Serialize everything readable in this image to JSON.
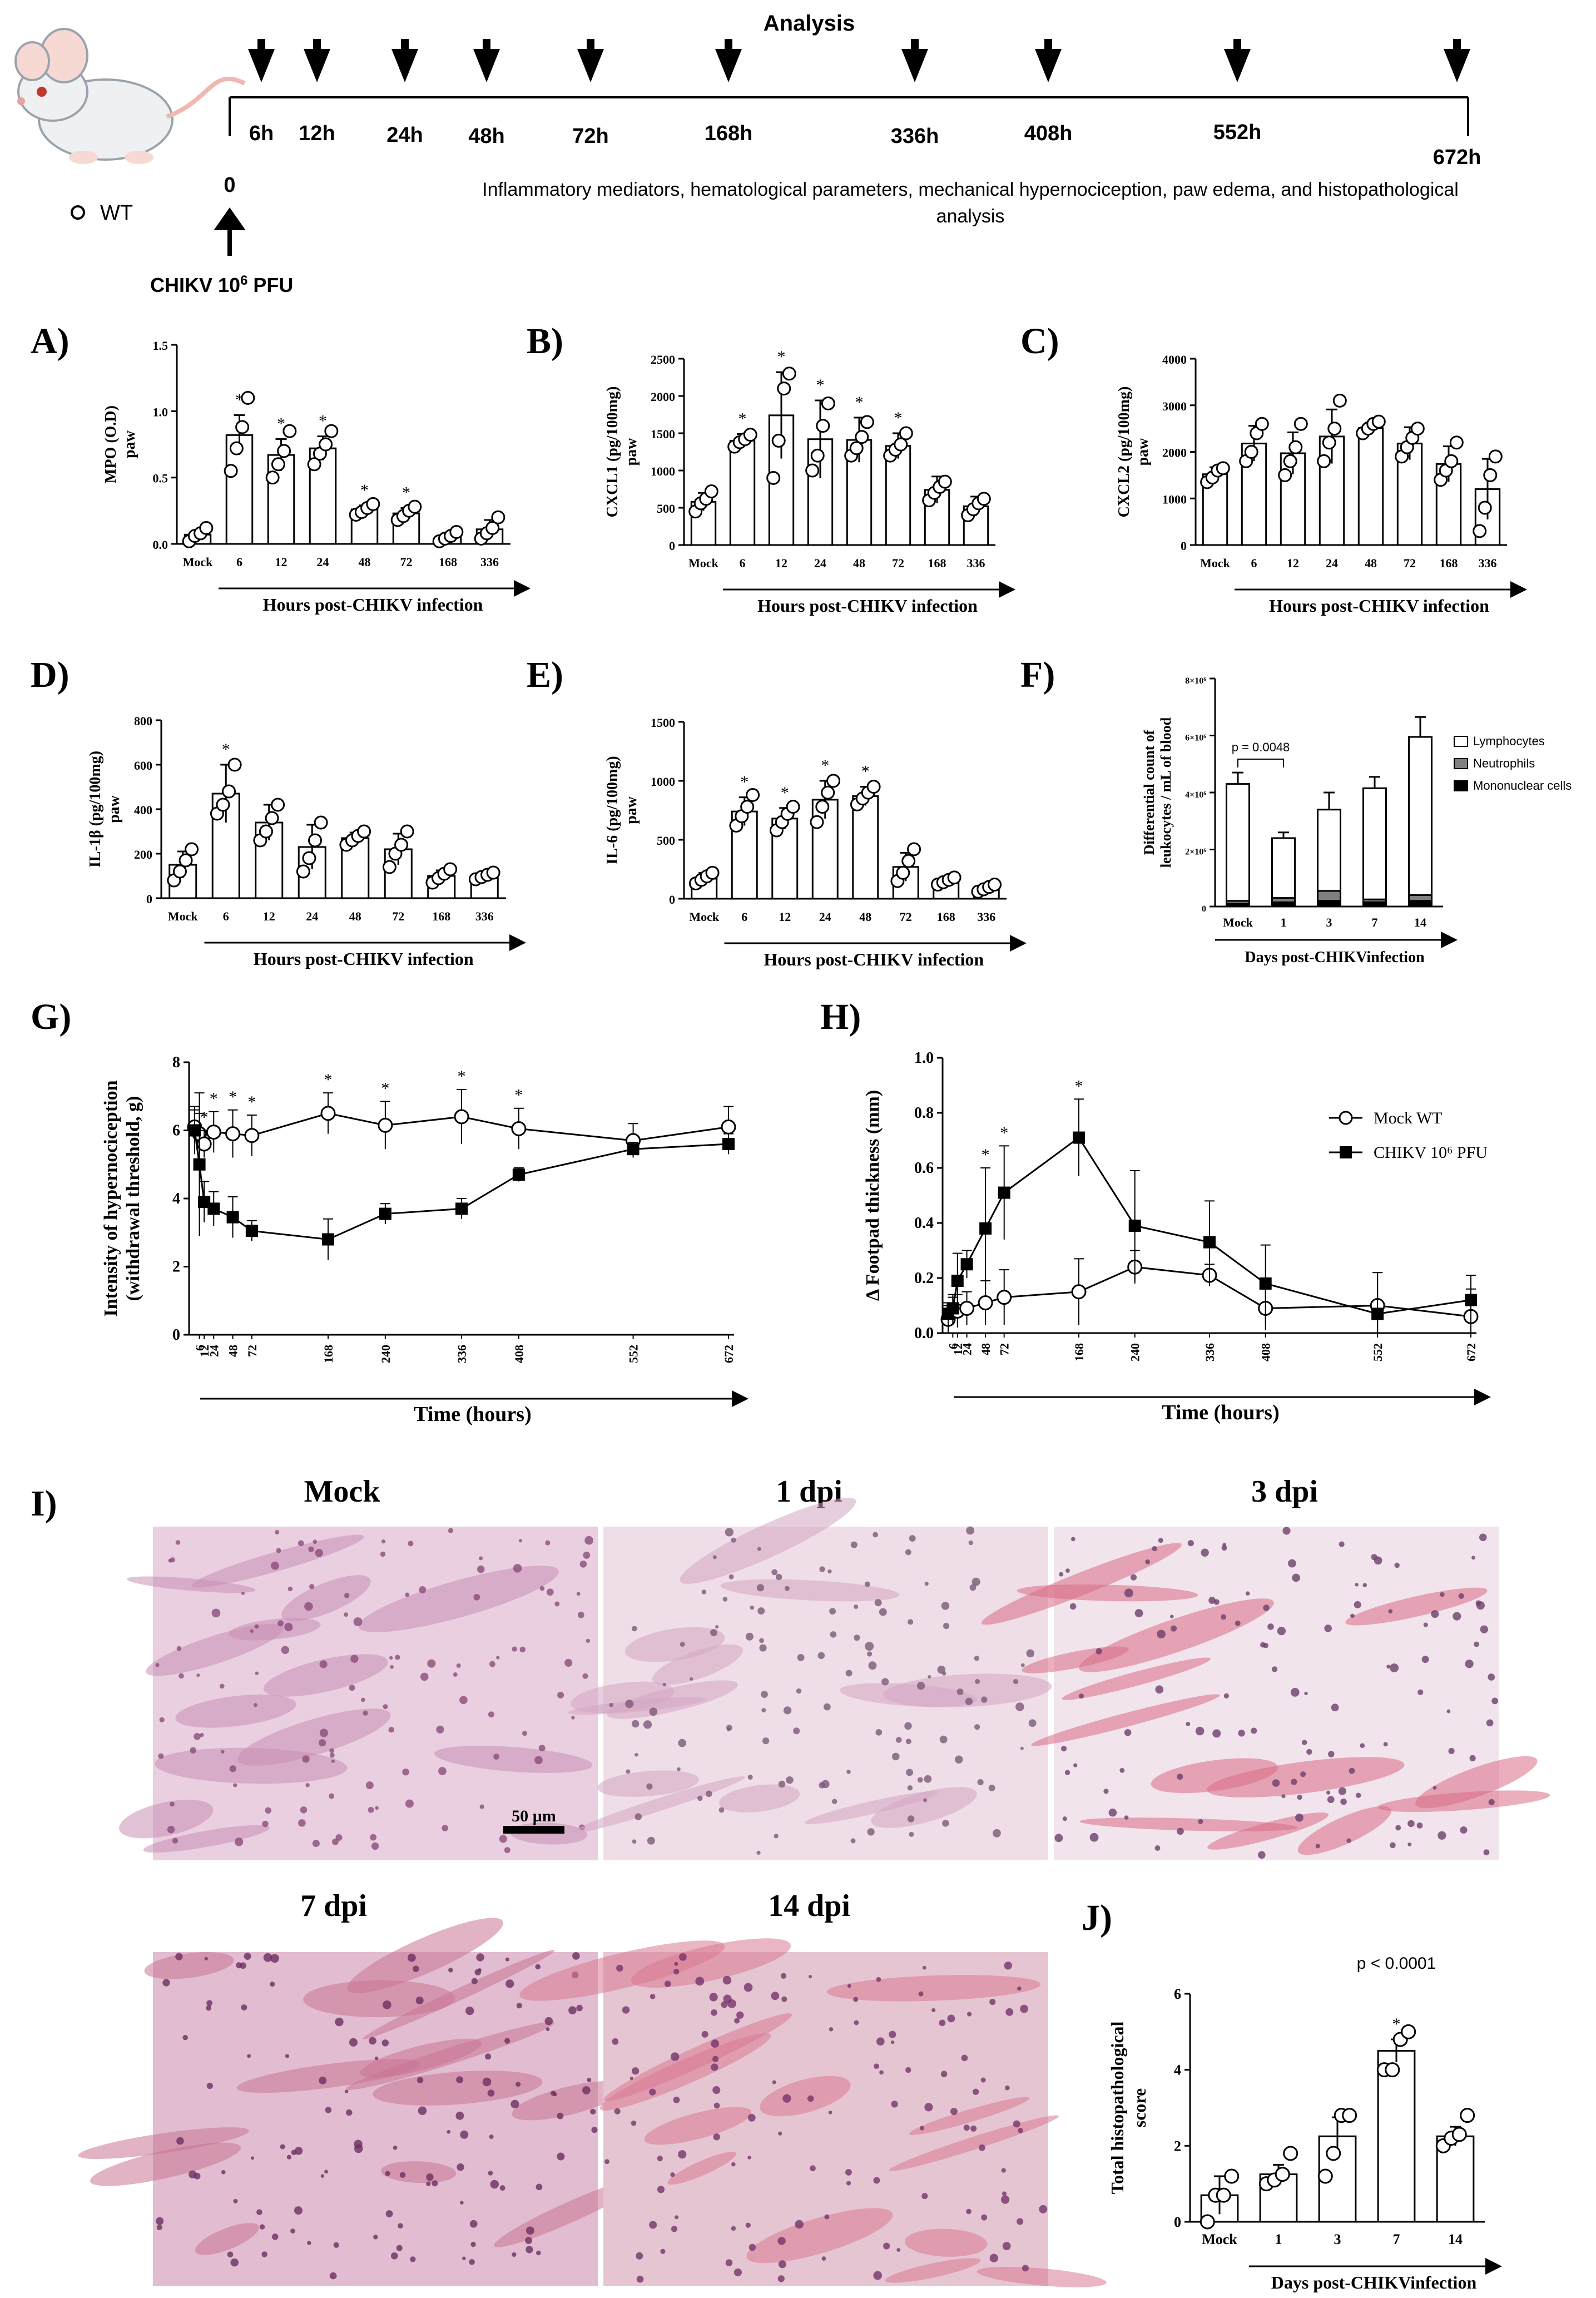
{
  "timeline": {
    "title": "Analysis",
    "hours": [
      "6h",
      "12h",
      "24h",
      "48h",
      "72h",
      "168h",
      "336h",
      "408h",
      "552h",
      "672h"
    ],
    "zero_label": "0",
    "infection_label_pre": "CHIKV 10",
    "infection_exp": "6",
    "infection_label_post": " PFU",
    "description_line1": "Inflammatory mediators, hematological parameters, mechanical hypernociception, paw edema, and histopathological",
    "description_line2": "analysis",
    "legend_wt": "WT"
  },
  "colors": {
    "bar_fill": "#ffffff",
    "stroke": "#000000",
    "neutrophil": "#808080",
    "mononuclear": "#000000"
  },
  "histology": {
    "label_i": "I)",
    "panels": [
      {
        "title": "Mock",
        "tone": "mock"
      },
      {
        "title": "1 dpi",
        "tone": "d1"
      },
      {
        "title": "3 dpi",
        "tone": "d3"
      },
      {
        "title": "7 dpi",
        "tone": "d7"
      },
      {
        "title": "14 dpi",
        "tone": "d14"
      }
    ],
    "scale_bar": "50 µm"
  },
  "chart_data": [
    {
      "id": "A",
      "panel_label": "A)",
      "type": "bar",
      "ylabel_line1": "MPO (O.D)",
      "ylabel_line2": "paw",
      "xlabel": "Hours post-CHIKV infection",
      "categories": [
        "Mock",
        "6",
        "12",
        "24",
        "48",
        "72",
        "168",
        "336"
      ],
      "values": [
        0.07,
        0.82,
        0.67,
        0.72,
        0.26,
        0.23,
        0.05,
        0.11
      ],
      "errors": [
        0.03,
        0.15,
        0.12,
        0.09,
        0.03,
        0.04,
        0.03,
        0.07
      ],
      "points": [
        [
          0.02,
          0.06,
          0.08,
          0.12
        ],
        [
          0.55,
          0.72,
          0.88,
          1.1
        ],
        [
          0.5,
          0.6,
          0.7,
          0.85
        ],
        [
          0.6,
          0.68,
          0.75,
          0.85
        ],
        [
          0.22,
          0.24,
          0.27,
          0.3
        ],
        [
          0.18,
          0.21,
          0.25,
          0.28
        ],
        [
          0.02,
          0.04,
          0.06,
          0.09
        ],
        [
          0.04,
          0.08,
          0.12,
          0.2
        ]
      ],
      "sig": [
        "",
        "*",
        "*",
        "*",
        "*",
        "*",
        "",
        ""
      ],
      "ylim": [
        0,
        1.5
      ],
      "yticks": [
        0.0,
        0.5,
        1.0,
        1.5
      ],
      "ytick_labels": [
        "0.0",
        "0.5",
        "1.0",
        "1.5"
      ]
    },
    {
      "id": "B",
      "panel_label": "B)",
      "type": "bar",
      "ylabel_line1": "CXCL1 (pg/100mg)",
      "ylabel_line2": "paw",
      "xlabel": "Hours post-CHIKV infection",
      "categories": [
        "Mock",
        "6",
        "12",
        "24",
        "48",
        "72",
        "168",
        "336"
      ],
      "values": [
        580,
        1400,
        1740,
        1420,
        1410,
        1330,
        740,
        520
      ],
      "errors": [
        120,
        90,
        580,
        520,
        300,
        170,
        180,
        130
      ],
      "points": [
        [
          450,
          560,
          620,
          720
        ],
        [
          1320,
          1380,
          1420,
          1480
        ],
        [
          900,
          1400,
          2100,
          2300
        ],
        [
          1000,
          1200,
          1600,
          1900
        ],
        [
          1200,
          1300,
          1450,
          1650
        ],
        [
          1200,
          1280,
          1350,
          1500
        ],
        [
          600,
          700,
          780,
          850
        ],
        [
          400,
          480,
          560,
          620
        ]
      ],
      "sig": [
        "",
        "*",
        "*",
        "*",
        "*",
        "*",
        "",
        ""
      ],
      "ylim": [
        0,
        2500
      ],
      "yticks": [
        0,
        500,
        1000,
        1500,
        2000,
        2500
      ],
      "ytick_labels": [
        "0",
        "500",
        "1000",
        "1500",
        "2000",
        "2500"
      ]
    },
    {
      "id": "C",
      "panel_label": "C)",
      "type": "bar",
      "ylabel_line1": "CXCL2 (pg/100mg)",
      "ylabel_line2": "paw",
      "xlabel": "Hours post-CHIKV infection",
      "categories": [
        "Mock",
        "6",
        "12",
        "24",
        "48",
        "72",
        "168",
        "336"
      ],
      "values": [
        1520,
        2180,
        1970,
        2330,
        2510,
        2180,
        1740,
        1200
      ],
      "errors": [
        150,
        380,
        450,
        580,
        120,
        350,
        380,
        650
      ],
      "points": [
        [
          1350,
          1450,
          1600,
          1650
        ],
        [
          1800,
          2000,
          2400,
          2600
        ],
        [
          1500,
          1800,
          2100,
          2600
        ],
        [
          1800,
          2200,
          2500,
          3100
        ],
        [
          2400,
          2500,
          2600,
          2650
        ],
        [
          1900,
          2100,
          2300,
          2500
        ],
        [
          1400,
          1600,
          1800,
          2200
        ],
        [
          300,
          800,
          1500,
          1900
        ]
      ],
      "sig": [
        "",
        "",
        "",
        "",
        "",
        "",
        "",
        ""
      ],
      "ylim": [
        0,
        4000
      ],
      "yticks": [
        0,
        1000,
        2000,
        3000,
        4000
      ],
      "ytick_labels": [
        "0",
        "1000",
        "2000",
        "3000",
        "4000"
      ]
    },
    {
      "id": "D",
      "panel_label": "D)",
      "type": "bar",
      "ylabel_line1": "IL-1β (pg/100mg)",
      "ylabel_line2": "paw",
      "xlabel": "Hours post-CHIKV infection",
      "categories": [
        "Mock",
        "6",
        "12",
        "24",
        "48",
        "72",
        "168",
        "336"
      ],
      "values": [
        150,
        470,
        340,
        230,
        270,
        220,
        100,
        100
      ],
      "errors": [
        60,
        130,
        80,
        100,
        25,
        70,
        25,
        15
      ],
      "points": [
        [
          80,
          120,
          170,
          220
        ],
        [
          380,
          420,
          480,
          600
        ],
        [
          260,
          300,
          360,
          420
        ],
        [
          120,
          180,
          260,
          340
        ],
        [
          240,
          260,
          280,
          300
        ],
        [
          140,
          200,
          240,
          300
        ],
        [
          70,
          90,
          110,
          130
        ],
        [
          85,
          95,
          105,
          115
        ]
      ],
      "sig": [
        "",
        "*",
        "",
        "",
        "",
        "",
        "",
        ""
      ],
      "ylim": [
        0,
        800
      ],
      "yticks": [
        0,
        200,
        400,
        600,
        800
      ],
      "ytick_labels": [
        "0",
        "200",
        "400",
        "600",
        "800"
      ]
    },
    {
      "id": "E",
      "panel_label": "E)",
      "type": "bar",
      "ylabel_line1": "IL-6 (pg/100mg)",
      "ylabel_line2": "paw",
      "xlabel": "Hours post-CHIKV infection",
      "categories": [
        "Mock",
        "6",
        "12",
        "24",
        "48",
        "72",
        "168",
        "336"
      ],
      "values": [
        170,
        740,
        680,
        840,
        870,
        270,
        150,
        90
      ],
      "errors": [
        50,
        120,
        90,
        160,
        80,
        120,
        30,
        30
      ],
      "points": [
        [
          130,
          160,
          190,
          220
        ],
        [
          620,
          700,
          780,
          880
        ],
        [
          580,
          650,
          720,
          780
        ],
        [
          650,
          780,
          900,
          1000
        ],
        [
          800,
          850,
          900,
          950
        ],
        [
          150,
          220,
          320,
          420
        ],
        [
          120,
          140,
          160,
          180
        ],
        [
          60,
          80,
          100,
          120
        ]
      ],
      "sig": [
        "",
        "*",
        "*",
        "*",
        "*",
        "",
        "",
        ""
      ],
      "ylim": [
        0,
        1500
      ],
      "yticks": [
        0,
        500,
        1000,
        1500
      ],
      "ytick_labels": [
        "0",
        "500",
        "1000",
        "1500"
      ]
    },
    {
      "id": "F",
      "panel_label": "F)",
      "type": "stacked-bar",
      "ylabel_line1": "Differential count of",
      "ylabel_line2": "leukocytes / mL of blood",
      "xlabel": "Days post-CHIKVinfection",
      "categories": [
        "Mock",
        "1",
        "3",
        "7",
        "14"
      ],
      "series": [
        {
          "name": "Mononuclear cells",
          "values": [
            100000,
            150000,
            200000,
            150000,
            200000
          ]
        },
        {
          "name": "Neutrophils",
          "values": [
            100000,
            150000,
            350000,
            100000,
            200000
          ]
        },
        {
          "name": "Lymphocytes",
          "values": [
            4100000,
            2100000,
            2850000,
            3900000,
            5550000
          ]
        }
      ],
      "totals_error": [
        400000,
        200000,
        600000,
        400000,
        700000
      ],
      "pvalue": "p = 0.0048",
      "ylim": [
        0,
        8000000
      ],
      "yticks": [
        0,
        2000000,
        4000000,
        6000000,
        8000000
      ],
      "ytick_labels": [
        "0",
        "2×10⁶",
        "4×10⁶",
        "6×10⁶",
        "8×10⁶"
      ]
    },
    {
      "id": "G",
      "panel_label": "G)",
      "type": "line",
      "ylabel_line1": "Intensity of hypernociception",
      "ylabel_line2": "(withdrawal threshold, g)",
      "xlabel": "Time (hours)",
      "x": [
        0,
        6,
        12,
        24,
        48,
        72,
        168,
        240,
        336,
        408,
        552,
        672
      ],
      "xtick_labels": [
        "6",
        "12",
        "24",
        "48",
        "72",
        "168",
        "240",
        "336",
        "408",
        "552",
        "672"
      ],
      "xtick_values": [
        6,
        12,
        24,
        48,
        72,
        168,
        240,
        336,
        408,
        552,
        672
      ],
      "series": [
        {
          "name": "Mock WT",
          "marker": "open-circle",
          "values": [
            6.1,
            5.9,
            5.6,
            5.95,
            5.9,
            5.85,
            6.5,
            6.15,
            6.4,
            6.05,
            5.7,
            6.1
          ],
          "errors": [
            0.5,
            0.6,
            0.4,
            0.6,
            0.7,
            0.6,
            0.6,
            0.7,
            0.8,
            0.6,
            0.5,
            0.6
          ]
        },
        {
          "name": "CHIKV 10⁶ PFU",
          "marker": "filled-square",
          "values": [
            6.0,
            5.0,
            3.9,
            3.7,
            3.45,
            3.05,
            2.8,
            3.55,
            3.7,
            4.7,
            5.45,
            5.6
          ],
          "errors": [
            0.7,
            2.1,
            0.6,
            0.5,
            0.6,
            0.3,
            0.6,
            0.3,
            0.3,
            0.2,
            0.2,
            0.3
          ]
        }
      ],
      "sig_x": [
        12,
        24,
        48,
        72,
        168,
        240,
        336,
        408
      ],
      "ylim": [
        0,
        8
      ],
      "yticks": [
        0,
        2,
        4,
        6,
        8
      ],
      "ytick_labels": [
        "0",
        "2",
        "4",
        "6",
        "8"
      ],
      "xlim": [
        0,
        672
      ]
    },
    {
      "id": "H",
      "panel_label": "H)",
      "type": "line",
      "ylabel_line1": "Δ Footpad thickness (mm)",
      "ylabel_line2": "",
      "xlabel": "Time (hours)",
      "x": [
        0,
        6,
        12,
        24,
        48,
        72,
        168,
        240,
        336,
        408,
        552,
        672
      ],
      "xtick_labels": [
        "6",
        "12",
        "24",
        "48",
        "72",
        "168",
        "240",
        "336",
        "408",
        "552",
        "672"
      ],
      "xtick_values": [
        6,
        12,
        24,
        48,
        72,
        168,
        240,
        336,
        408,
        552,
        672
      ],
      "series": [
        {
          "name": "Mock WT",
          "marker": "open-circle",
          "values": [
            0.05,
            0.08,
            0.08,
            0.09,
            0.11,
            0.13,
            0.15,
            0.24,
            0.21,
            0.09,
            0.1,
            0.06
          ],
          "errors": [
            0.05,
            0.05,
            0.06,
            0.06,
            0.08,
            0.1,
            0.12,
            0.06,
            0.04,
            0.08,
            0.12,
            0.1
          ]
        },
        {
          "name": "CHIKV 10⁶ PFU",
          "marker": "filled-square",
          "values": [
            0.07,
            0.09,
            0.19,
            0.25,
            0.38,
            0.51,
            0.71,
            0.39,
            0.33,
            0.18,
            0.07,
            0.12
          ],
          "errors": [
            0.04,
            0.05,
            0.1,
            0.05,
            0.22,
            0.17,
            0.14,
            0.2,
            0.15,
            0.14,
            0.15,
            0.09
          ]
        }
      ],
      "sig_x": [
        48,
        72,
        168
      ],
      "legend": [
        "Mock WT",
        "CHIKV 10⁶ PFU"
      ],
      "ylim": [
        0,
        1.0
      ],
      "yticks": [
        0,
        0.2,
        0.4,
        0.6,
        0.8,
        1.0
      ],
      "ytick_labels": [
        "0.0",
        "0.2",
        "0.4",
        "0.6",
        "0.8",
        "1.0"
      ],
      "xlim": [
        0,
        672
      ]
    },
    {
      "id": "J",
      "panel_label": "J)",
      "type": "bar",
      "ylabel_line1": "Total histopathological",
      "ylabel_line2": "score",
      "xlabel": "Days post-CHIKVinfection",
      "categories": [
        "Mock",
        "1",
        "3",
        "7",
        "14"
      ],
      "values": [
        0.7,
        1.25,
        2.25,
        4.5,
        2.25
      ],
      "errors": [
        0.5,
        0.25,
        0.5,
        0.3,
        0.25
      ],
      "points": [
        [
          0,
          0.7,
          0.7,
          1.2
        ],
        [
          1,
          1.1,
          1.25,
          1.8
        ],
        [
          1.2,
          1.8,
          2.8,
          2.8
        ],
        [
          4,
          4,
          4.8,
          5
        ],
        [
          2,
          2.2,
          2.3,
          2.8
        ]
      ],
      "sig": [
        "",
        "",
        "",
        "*",
        ""
      ],
      "pvalue": "p < 0.0001",
      "ylim": [
        0,
        6
      ],
      "yticks": [
        0,
        2,
        4,
        6
      ],
      "ytick_labels": [
        "0",
        "2",
        "4",
        "6"
      ]
    }
  ]
}
